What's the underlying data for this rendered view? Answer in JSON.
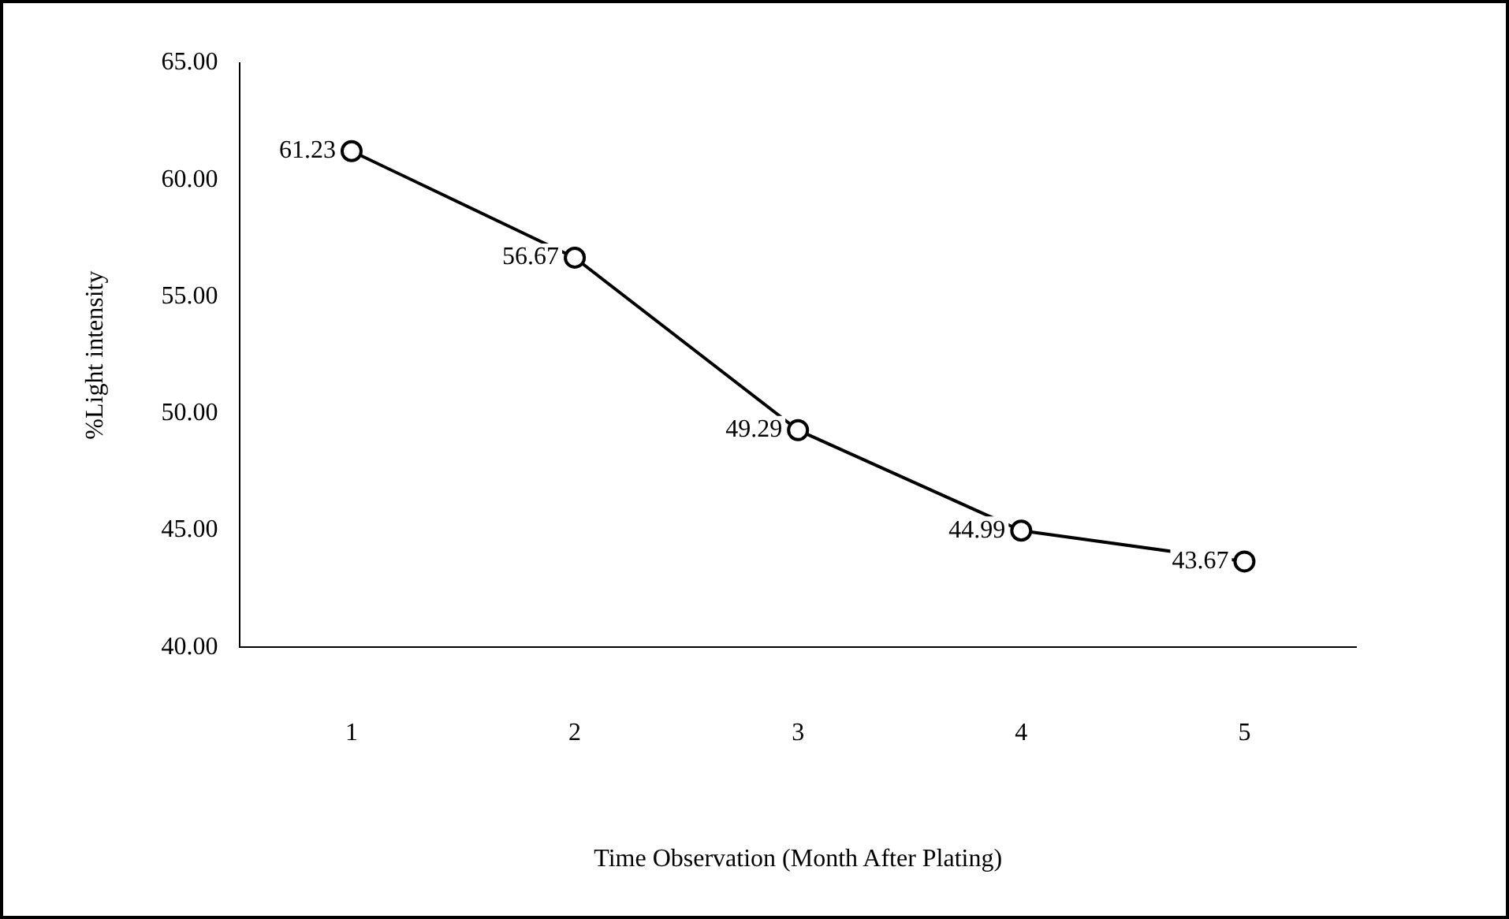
{
  "chart_data": {
    "type": "line",
    "xlabel": "Time Observation (Month After Plating)",
    "ylabel": "%Light intensity",
    "categories": [
      "1",
      "2",
      "3",
      "4",
      "5"
    ],
    "values": [
      61.23,
      56.67,
      49.29,
      44.99,
      43.67
    ],
    "color": "#000000",
    "marker": "circle",
    "data_labels": true,
    "ylim": [
      40,
      65
    ],
    "yticks": [
      {
        "value": 40,
        "label": "40.00"
      },
      {
        "value": 45,
        "label": "45.00"
      },
      {
        "value": 50,
        "label": "50.00"
      },
      {
        "value": 55,
        "label": "55.00"
      },
      {
        "value": 60,
        "label": "60.00"
      },
      {
        "value": 65,
        "label": "65.00"
      }
    ]
  }
}
